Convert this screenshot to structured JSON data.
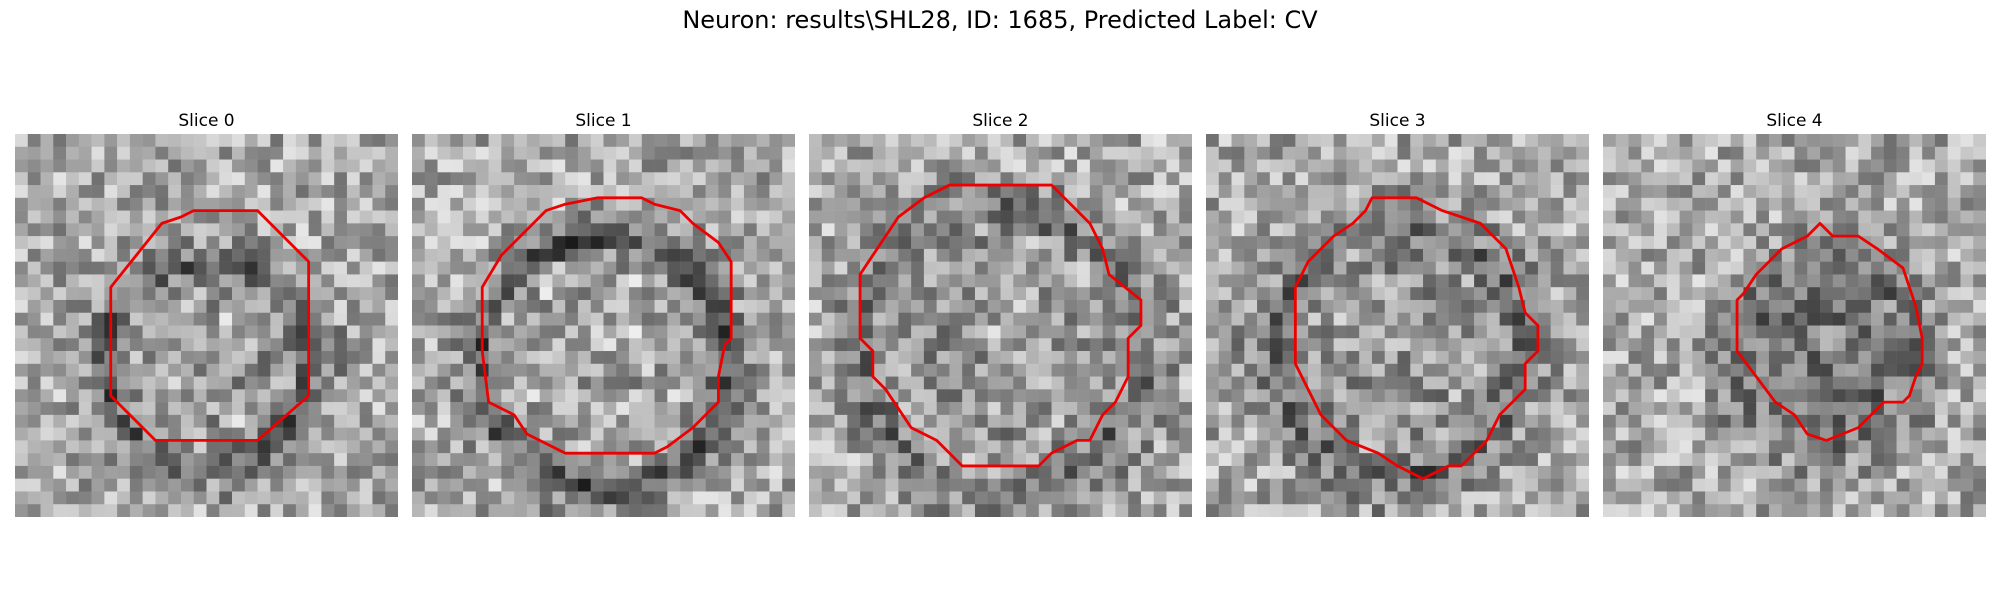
{
  "title": "Neuron: results\\SHL28, ID: 1685, Predicted Label: CV",
  "contour_color": "#ee0000",
  "panels": [
    {
      "label": "Slice 0"
    },
    {
      "label": "Slice 1"
    },
    {
      "label": "Slice 2"
    },
    {
      "label": "Slice 3"
    },
    {
      "label": "Slice 4"
    }
  ]
}
